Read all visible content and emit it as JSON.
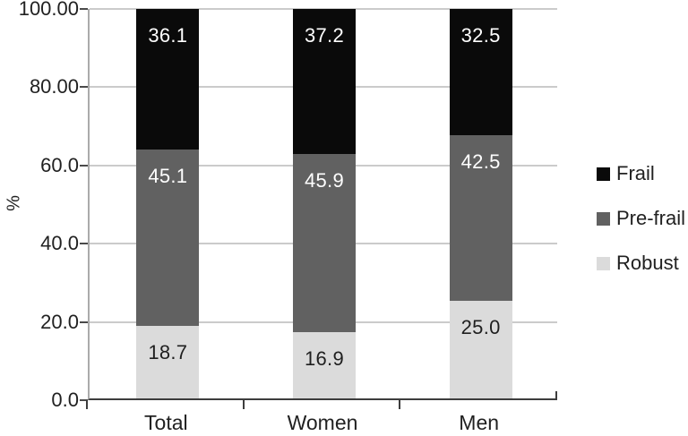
{
  "chart_data": {
    "type": "bar",
    "stacked": true,
    "title": "",
    "xlabel": "",
    "ylabel": "%",
    "ylim": [
      0,
      100
    ],
    "grid": true,
    "legend_position": "right",
    "y_axis": {
      "tick_labels": [
        "100.00",
        "80.00",
        "60.0",
        "40.0",
        "20.0",
        "0.0"
      ]
    },
    "categories": [
      "Total",
      "Women",
      "Men"
    ],
    "series": [
      {
        "name": "Frail",
        "color": "#0a0a0a",
        "label_color": "#ffffff",
        "values": [
          36.1,
          37.2,
          32.5
        ]
      },
      {
        "name": "Pre-frail",
        "color": "#616161",
        "label_color": "#ffffff",
        "values": [
          45.1,
          45.9,
          42.5
        ]
      },
      {
        "name": "Robust",
        "color": "#dbdbdb",
        "label_color": "#1f1f1f",
        "values": [
          18.7,
          16.9,
          25.0
        ]
      }
    ],
    "legend": [
      "Frail",
      "Pre-frail",
      "Robust"
    ]
  }
}
